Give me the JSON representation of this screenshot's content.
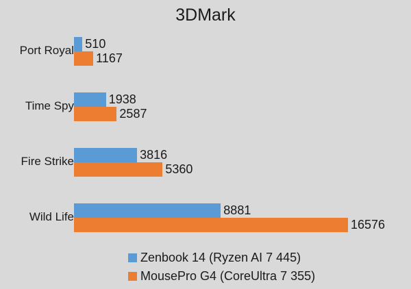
{
  "chart_data": {
    "type": "bar",
    "orientation": "horizontal",
    "title": "3DMark",
    "xlabel": "",
    "ylabel": "",
    "categories": [
      "Port Royal",
      "Time Spy",
      "Fire Strike",
      "Wild Life"
    ],
    "series": [
      {
        "name": "Zenbook 14 (Ryzen AI 7 445)",
        "color": "#5b9bd5",
        "values": [
          510,
          1938,
          3816,
          8881
        ]
      },
      {
        "name": "MousePro G4 (CoreUltra 7 355)",
        "color": "#ed7d31",
        "values": [
          1167,
          2587,
          5360,
          16576
        ]
      }
    ],
    "data_labels": true,
    "grid": false,
    "legend_position": "bottom"
  },
  "labels": {
    "title": "3DMark",
    "cats": [
      "Port Royal",
      "Time Spy",
      "Fire Strike",
      "Wild Life"
    ],
    "s0": [
      "510",
      "1938",
      "3816",
      "8881"
    ],
    "s1": [
      "1167",
      "2587",
      "5360",
      "16576"
    ],
    "legend0": "Zenbook 14 (Ryzen AI 7 445)",
    "legend1": "MousePro G4 (CoreUltra 7 355)"
  }
}
